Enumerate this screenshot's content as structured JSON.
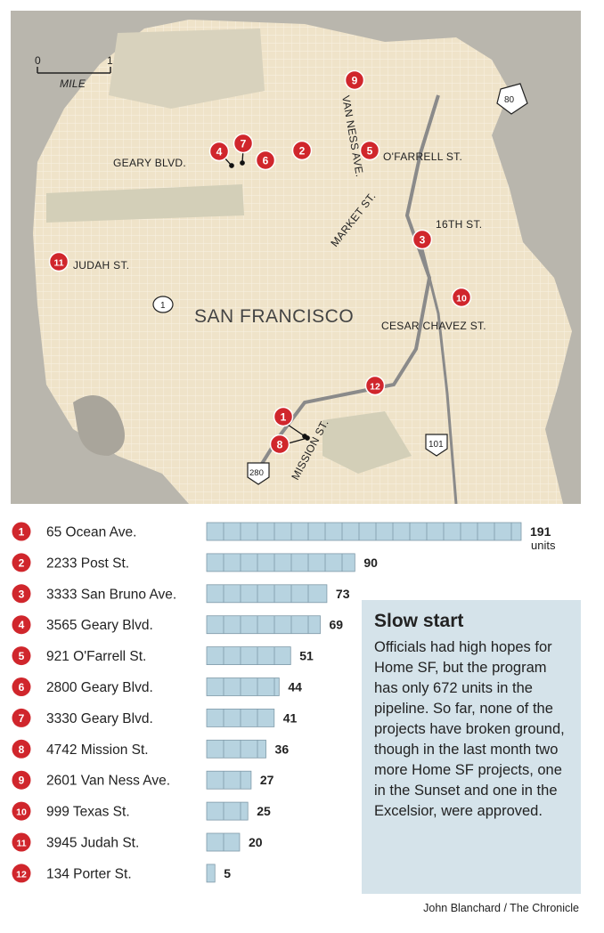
{
  "map": {
    "city_label": "SAN FRANCISCO",
    "scale": {
      "zero": "0",
      "one": "1",
      "unit": "MILE"
    },
    "streets": [
      "GEARY BLVD.",
      "O'FARRELL ST.",
      "VAN NESS AVE.",
      "MARKET ST.",
      "16TH ST.",
      "JUDAH ST.",
      "CESAR CHAVEZ ST.",
      "MISSION ST."
    ],
    "highway_shields": [
      "80",
      "1",
      "101",
      "280"
    ]
  },
  "chart_data": {
    "type": "bar",
    "categories": [
      "65 Ocean Ave.",
      "2233 Post St.",
      "3333 San Bruno Ave.",
      "3565 Geary Blvd.",
      "921 O'Farrell St.",
      "2800 Geary Blvd.",
      "3330 Geary Blvd.",
      "4742 Mission St.",
      "2601 Van Ness Ave.",
      "999 Texas St.",
      "3945 Judah St.",
      "134 Porter St."
    ],
    "numbers": [
      "1",
      "2",
      "3",
      "4",
      "5",
      "6",
      "7",
      "8",
      "9",
      "10",
      "11",
      "12"
    ],
    "values": [
      191,
      90,
      73,
      69,
      51,
      44,
      41,
      36,
      27,
      25,
      20,
      5
    ],
    "value_labels": [
      "191",
      "90",
      "73",
      "69",
      "51",
      "44",
      "41",
      "36",
      "27",
      "25",
      "20",
      "5"
    ],
    "unit_label": "units",
    "bar_color": "#b7d3e0",
    "marker_color": "#d0262c"
  },
  "sidebar": {
    "title": "Slow start",
    "body": "Officials had high hopes for Home SF, but the program has only 672 units in the pipeline. So far, none of the projects have broken ground, though in the last month two more Home SF projects, one in the Sunset and one in the Excelsior, were approved."
  },
  "credit": "John Blanchard / The Chronicle"
}
